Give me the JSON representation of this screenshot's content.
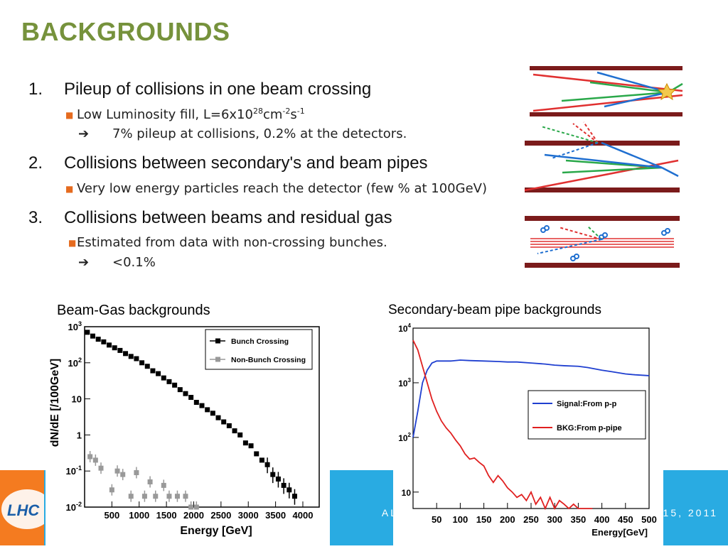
{
  "slide": {
    "title": "BACKGROUNDS",
    "items": [
      {
        "num": "1.",
        "text": "Pileup of collisions in one beam crossing"
      },
      {
        "num": "2.",
        "text": "Collisions between secondary's and beam pipes"
      },
      {
        "num": "3.",
        "text": "Collisions between beams and residual gas"
      }
    ],
    "sub1": {
      "prefix": "Low Luminosity fill, L=6x10",
      "exp1": "28",
      "mid": "cm",
      "exp2": "-2",
      "mid2": "s",
      "exp3": "-1"
    },
    "arrow1": {
      "text": "7% pileup at collisions,  0.2% at the detectors."
    },
    "sub2": {
      "text": "Very low energy particles reach the detector (few % at 100GeV)"
    },
    "sub3": {
      "text": "Estimated from data with non-crossing bunches."
    },
    "arrow3": {
      "text": "<0.1%"
    },
    "footer": "ALESSIA TRICOMI · · · ENGI NAGOYA · · · 15, 2011",
    "logo_text": "LHC",
    "colors": {
      "title": "#76923c",
      "bullet": "#e56b1f",
      "footer": "#29abe2",
      "pipe": "#7b1b1b"
    }
  },
  "chart_data": [
    {
      "type": "scatter",
      "title": "Beam-Gas backgrounds",
      "xlabel": "Energy [GeV]",
      "ylabel": "dN/dE [/100GeV]",
      "xlim": [
        0,
        4300
      ],
      "ylim": [
        0.01,
        1000
      ],
      "yscale": "log",
      "xticks": [
        "500",
        "1000",
        "1500",
        "2000",
        "2500",
        "3000",
        "3500",
        "4000"
      ],
      "yticks": [
        "10^3",
        "10^2",
        "10",
        "1",
        "10^-1",
        "10^-2"
      ],
      "legend_position": "top-right",
      "series": [
        {
          "name": "Bunch Crossing",
          "color": "#000000",
          "x": [
            50,
            150,
            250,
            350,
            450,
            550,
            650,
            750,
            850,
            950,
            1050,
            1150,
            1250,
            1350,
            1450,
            1550,
            1650,
            1750,
            1850,
            1950,
            2050,
            2150,
            2250,
            2350,
            2450,
            2550,
            2650,
            2750,
            2850,
            2950,
            3050,
            3150,
            3250,
            3350,
            3450,
            3550,
            3650,
            3750,
            3850
          ],
          "y": [
            700,
            550,
            450,
            380,
            310,
            260,
            220,
            180,
            150,
            130,
            100,
            80,
            60,
            50,
            38,
            30,
            24,
            18,
            14,
            11,
            8,
            6.5,
            5,
            4,
            3,
            2.3,
            1.8,
            1.3,
            1,
            0.6,
            0.5,
            0.3,
            0.2,
            0.15,
            0.08,
            0.06,
            0.04,
            0.03,
            0.02
          ]
        },
        {
          "name": "Non-Bunch Crossing",
          "color": "#999999",
          "x": [
            100,
            200,
            300,
            500,
            600,
            700,
            850,
            950,
            1100,
            1200,
            1300,
            1450,
            1550,
            1700,
            1850,
            1950,
            2050
          ],
          "y": [
            0.25,
            0.2,
            0.12,
            0.03,
            0.1,
            0.08,
            0.02,
            0.09,
            0.02,
            0.05,
            0.02,
            0.04,
            0.02,
            0.02,
            0.02,
            0.01,
            0.01
          ]
        }
      ]
    },
    {
      "type": "line",
      "title": "Secondary-beam pipe backgrounds",
      "xlabel": "Energy[GeV]",
      "ylabel": "",
      "xlim": [
        0,
        500
      ],
      "ylim": [
        5,
        10000
      ],
      "yscale": "log",
      "xticks": [
        "50",
        "100",
        "150",
        "200",
        "250",
        "300",
        "350",
        "400",
        "450",
        "500"
      ],
      "yticks": [
        "10^4",
        "10^3",
        "10^2",
        "10"
      ],
      "legend_position": "center-right",
      "series": [
        {
          "name": "Signal:From p-p",
          "color": "#1f3fd0",
          "x": [
            0,
            10,
            20,
            30,
            40,
            50,
            60,
            80,
            100,
            120,
            150,
            180,
            200,
            220,
            250,
            280,
            300,
            320,
            350,
            370,
            400,
            420,
            450,
            470,
            500
          ],
          "y": [
            100,
            300,
            1000,
            1700,
            2300,
            2500,
            2500,
            2500,
            2600,
            2550,
            2500,
            2450,
            2400,
            2400,
            2300,
            2200,
            2100,
            2050,
            2000,
            1900,
            1700,
            1600,
            1450,
            1400,
            1350
          ]
        },
        {
          "name": "BKG:From p-pipe",
          "color": "#e02020",
          "x": [
            0,
            10,
            20,
            30,
            40,
            50,
            60,
            70,
            80,
            90,
            100,
            110,
            120,
            130,
            140,
            150,
            160,
            170,
            180,
            190,
            200,
            210,
            220,
            230,
            240,
            250,
            260,
            270,
            280,
            290,
            300,
            310,
            320,
            330,
            340,
            350,
            360,
            370,
            380
          ],
          "y": [
            6000,
            4000,
            2000,
            1000,
            500,
            300,
            200,
            150,
            120,
            90,
            70,
            50,
            40,
            42,
            35,
            30,
            20,
            15,
            20,
            16,
            12,
            10,
            8,
            9,
            7,
            10,
            6,
            8,
            5,
            8,
            5,
            7,
            6,
            5,
            6,
            5,
            5,
            5,
            5
          ]
        }
      ]
    }
  ]
}
